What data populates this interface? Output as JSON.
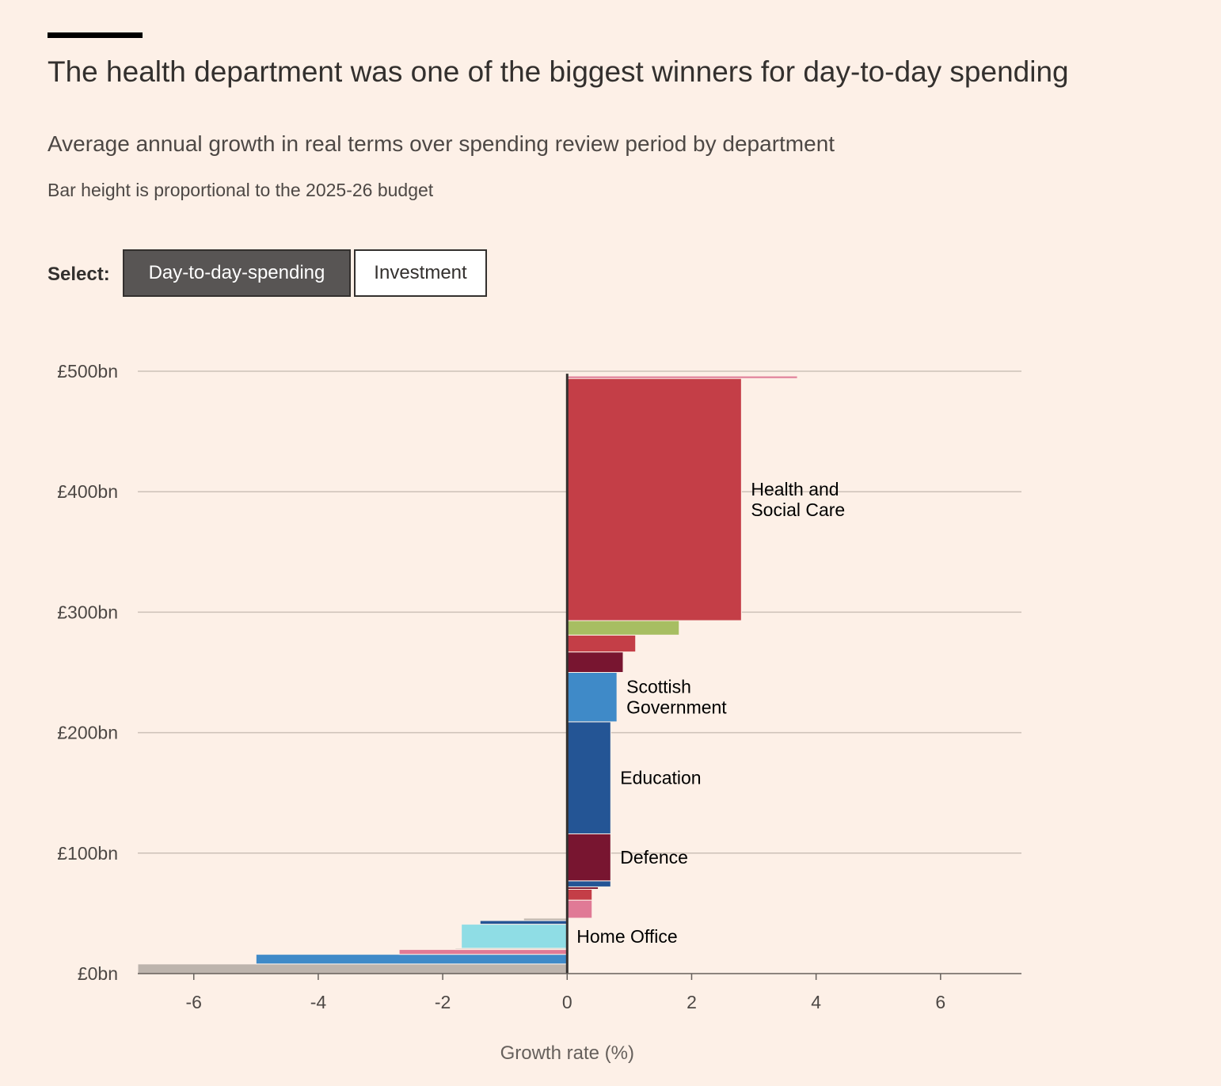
{
  "header": {
    "title": "The health department was one of the biggest winners for day-to-day spending",
    "subtitle": "Average annual growth in real terms over spending review period by department",
    "note": "Bar height is proportional to the 2025-26 budget"
  },
  "controls": {
    "select_label": "Select:",
    "buttons": [
      {
        "label": "Day-to-day-spending",
        "active": true
      },
      {
        "label": "Investment",
        "active": false
      }
    ]
  },
  "chart_data": {
    "type": "bar",
    "orientation": "variable-width (marimekko-style)",
    "xlabel": "Growth rate (%)",
    "xlim": [
      -6.9,
      7.3
    ],
    "ylim": [
      0,
      500
    ],
    "x_ticks": [
      "-6",
      "-4",
      "-2",
      "0",
      "2",
      "4",
      "6"
    ],
    "x_tick_values": [
      -6,
      -4,
      -2,
      0,
      2,
      4,
      6
    ],
    "y_ticks": [
      "£0bn",
      "£100bn",
      "£200bn",
      "£300bn",
      "£400bn",
      "£500bn"
    ],
    "y_tick_values": [
      0,
      100,
      200,
      300,
      400,
      500
    ],
    "grid": true,
    "bars": [
      {
        "name": "",
        "growth": -6.9,
        "budget": 8,
        "color": "#bdb4ad"
      },
      {
        "name": "",
        "growth": -5.0,
        "budget": 8,
        "color": "#3f8ac8"
      },
      {
        "name": "",
        "growth": -2.7,
        "budget": 4,
        "color": "#e07a96"
      },
      {
        "name": "",
        "growth": -1.8,
        "budget": 1,
        "color": "#cfc6bf"
      },
      {
        "name": "Home Office",
        "growth": -1.7,
        "budget": 20,
        "color": "#8fdde5"
      },
      {
        "name": "",
        "growth": -1.4,
        "budget": 3,
        "color": "#245595"
      },
      {
        "name": "",
        "growth": -0.7,
        "budget": 2,
        "color": "#bdb4ad"
      },
      {
        "name": "",
        "growth": 0.4,
        "budget": 15,
        "color": "#e07a96"
      },
      {
        "name": "",
        "growth": 0.4,
        "budget": 9,
        "color": "#c43e47"
      },
      {
        "name": "",
        "growth": 0.5,
        "budget": 2,
        "color": "#781530"
      },
      {
        "name": "",
        "growth": 0.7,
        "budget": 5,
        "color": "#245595"
      },
      {
        "name": "Defence",
        "growth": 0.7,
        "budget": 39,
        "color": "#781530"
      },
      {
        "name": "Education",
        "growth": 0.7,
        "budget": 93,
        "color": "#245595"
      },
      {
        "name": "Scottish Government",
        "growth": 0.8,
        "budget": 41,
        "color": "#3f8ac8"
      },
      {
        "name": "",
        "growth": 0.9,
        "budget": 17,
        "color": "#781530"
      },
      {
        "name": "",
        "growth": 1.1,
        "budget": 14,
        "color": "#c43e47"
      },
      {
        "name": "",
        "growth": 1.8,
        "budget": 12,
        "color": "#a7be62"
      },
      {
        "name": "Health and Social Care",
        "growth": 2.8,
        "budget": 201,
        "color": "#c43e47"
      },
      {
        "name": "",
        "growth": 3.7,
        "budget": 2,
        "color": "#e07a96"
      }
    ],
    "labels": [
      {
        "lines": [
          "Health and",
          "Social Care"
        ]
      },
      {
        "lines": [
          "Scottish",
          "Government"
        ]
      },
      {
        "lines": [
          "Education"
        ]
      },
      {
        "lines": [
          "Defence"
        ]
      },
      {
        "lines": [
          "Home Office"
        ]
      }
    ]
  }
}
